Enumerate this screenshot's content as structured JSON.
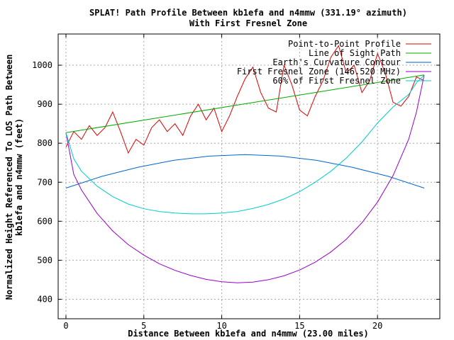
{
  "chart_data": {
    "type": "line",
    "title": "SPLAT! Path Profile Between kb1efa and n4mmw (331.19° azimuth)",
    "subtitle": "With First Fresnel Zone",
    "xlabel": "Distance Between kb1efa and n4mmw (23.00 miles)",
    "ylabel_line1": "Normalized Height Referenced To LOS Path Between",
    "ylabel_line2": "kb1efa and n4mmw (feet)",
    "xlim": [
      -0.5,
      24
    ],
    "ylim": [
      350,
      1080
    ],
    "xticks": [
      0,
      5,
      10,
      15,
      20
    ],
    "yticks": [
      400,
      500,
      600,
      700,
      800,
      900,
      1000
    ],
    "grid": true,
    "legend_position": "top-right",
    "colors": {
      "profile": "#dd0000",
      "los": "#00aa00",
      "earth": "#0066cc",
      "fresnel": "#9900cc",
      "fresnel60": "#00cccc"
    },
    "series": [
      {
        "name": "Point-to-Point Profile",
        "key": "profile",
        "x": [
          0,
          0.5,
          1,
          1.5,
          2,
          2.5,
          3,
          3.5,
          4,
          4.5,
          5,
          5.5,
          6,
          6.5,
          7,
          7.5,
          8,
          8.5,
          9,
          9.5,
          10,
          10.5,
          11,
          11.5,
          12,
          12.5,
          13,
          13.5,
          14,
          14.5,
          15,
          15.5,
          16,
          16.5,
          17,
          17.5,
          18,
          18.5,
          19,
          19.5,
          20,
          20.5,
          21,
          21.5,
          22,
          22.5,
          23
        ],
        "values": [
          790,
          830,
          810,
          845,
          820,
          840,
          880,
          830,
          775,
          810,
          795,
          840,
          860,
          830,
          850,
          820,
          870,
          900,
          860,
          890,
          830,
          870,
          920,
          965,
          995,
          930,
          890,
          880,
          1000,
          950,
          885,
          870,
          920,
          960,
          1020,
          1050,
          980,
          1000,
          930,
          960,
          1030,
          980,
          905,
          895,
          920,
          970,
          960
        ]
      },
      {
        "name": "Line of Sight Path",
        "key": "los",
        "x": [
          0,
          23
        ],
        "values": [
          827,
          975
        ]
      },
      {
        "name": "Earth's Curvature Contour",
        "key": "earth",
        "x": [
          0,
          2.3,
          4.6,
          6.9,
          9.2,
          11.5,
          13.8,
          16.1,
          18.4,
          20.7,
          23
        ],
        "values": [
          685,
          715,
          738,
          756,
          767,
          771,
          767,
          756,
          738,
          715,
          685
        ]
      },
      {
        "name": "First Fresnel Zone (146.520 MHz)",
        "key": "fresnel",
        "x": [
          0,
          0.5,
          1,
          2,
          3,
          4,
          5,
          6,
          7,
          8,
          9,
          10,
          11,
          12,
          13,
          14,
          15,
          16,
          17,
          18,
          19,
          20,
          21,
          22,
          22.5,
          23
        ],
        "values": [
          827,
          720,
          680,
          620,
          575,
          540,
          513,
          491,
          474,
          461,
          451,
          445,
          442,
          444,
          450,
          460,
          475,
          495,
          521,
          554,
          596,
          649,
          717,
          810,
          880,
          975
        ]
      },
      {
        "name": "60% of First Fresnel Zone",
        "key": "fresnel60",
        "x": [
          0,
          0.5,
          1,
          2,
          3,
          4,
          5,
          6,
          7,
          8,
          9,
          10,
          11,
          12,
          13,
          14,
          15,
          16,
          17,
          18,
          19,
          20,
          21,
          22,
          22.5,
          23
        ],
        "values": [
          827,
          760,
          728,
          690,
          663,
          644,
          632,
          625,
          621,
          619,
          619,
          621,
          625,
          633,
          643,
          657,
          676,
          700,
          728,
          762,
          803,
          852,
          893,
          925,
          955,
          975
        ]
      }
    ]
  }
}
